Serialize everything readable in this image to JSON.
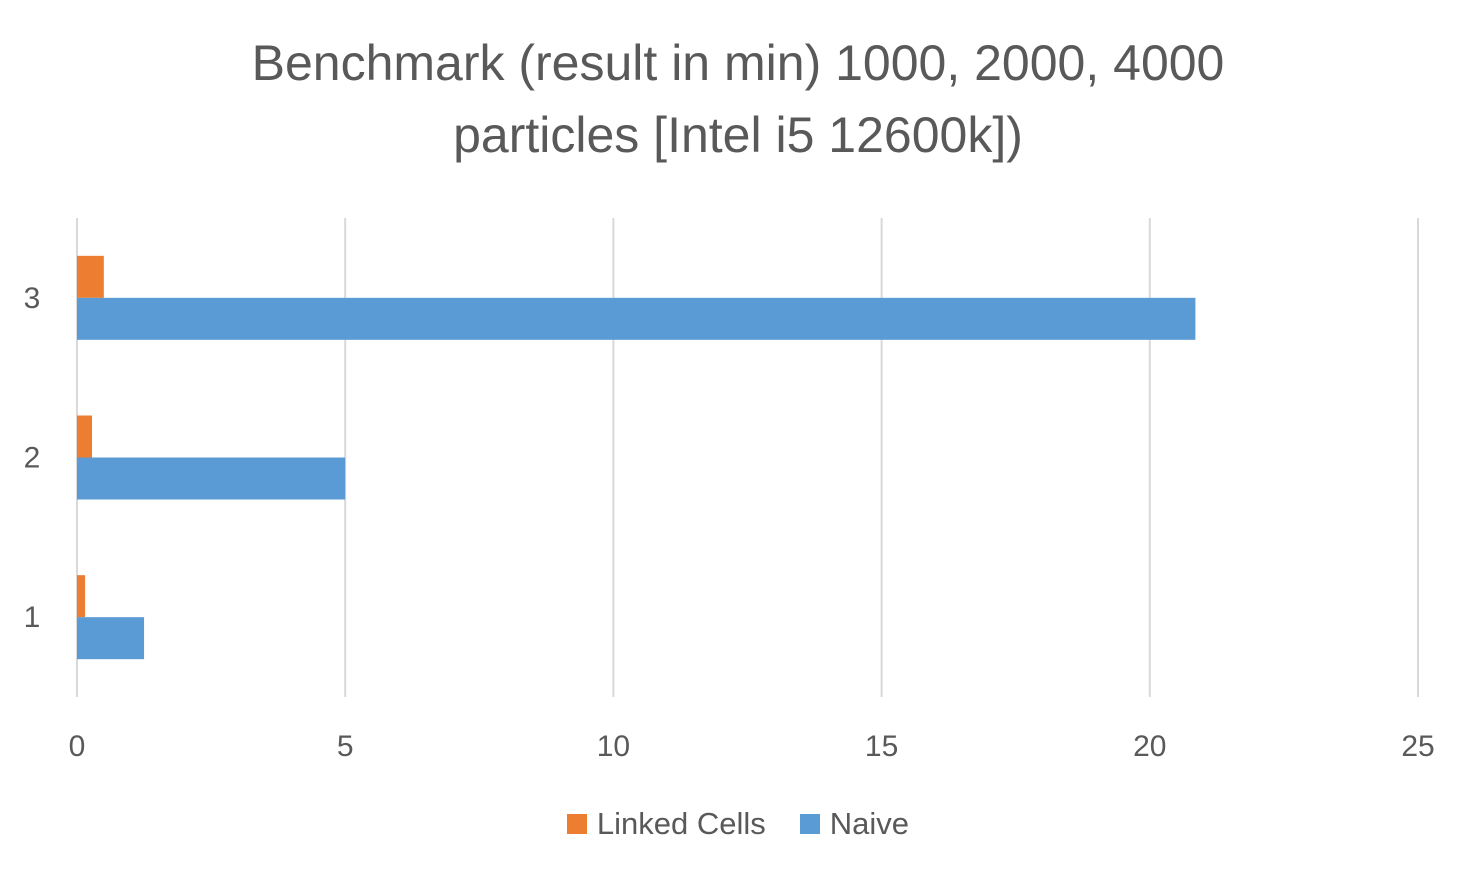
{
  "chart_data": {
    "type": "bar",
    "orientation": "horizontal",
    "title_lines": [
      "Benchmark (result in min) 1000, 2000, 4000",
      "particles [Intel i5 12600k])"
    ],
    "categories": [
      "1",
      "2",
      "3"
    ],
    "series": [
      {
        "name": "Linked Cells",
        "color": "#ED7D31",
        "values": [
          0.15,
          0.28,
          0.5
        ]
      },
      {
        "name": "Naive",
        "color": "#5B9BD5",
        "values": [
          1.25,
          5.0,
          20.85
        ]
      }
    ],
    "x_ticks": [
      0,
      5,
      10,
      15,
      20,
      25
    ],
    "xlim": [
      0,
      25
    ],
    "xlabel": "",
    "ylabel": "",
    "grid": true,
    "legend_position": "bottom"
  }
}
